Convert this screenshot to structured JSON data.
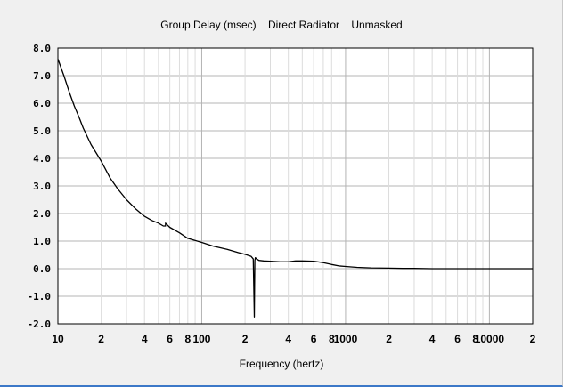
{
  "window": {
    "title": "Group Delay (msec)    Direct Radiator    Unmasked"
  },
  "chart_data": {
    "type": "line",
    "title": "Group Delay (msec)    Direct Radiator    Unmasked",
    "xlabel": "Frequency (hertz)",
    "ylabel": "",
    "xscale": "log",
    "xlim": [
      10,
      20000
    ],
    "ylim": [
      -2,
      8
    ],
    "grid": true,
    "legend": "none",
    "colors": {
      "background": "#ffffff",
      "line": "#000000",
      "grid_major": "#b4b4b4",
      "grid_minor": "#dcdcdc",
      "frame": "#000000"
    },
    "y_ticks": [
      "8.0",
      "7.0",
      "6.0",
      "5.0",
      "4.0",
      "3.0",
      "2.0",
      "1.0",
      "0.0",
      "-1.0",
      "-2.0"
    ],
    "x_ticks": [
      {
        "value": 10,
        "label": "10"
      },
      {
        "value": 20,
        "label": "2"
      },
      {
        "value": 40,
        "label": "4"
      },
      {
        "value": 60,
        "label": "6"
      },
      {
        "value": 80,
        "label": "8"
      },
      {
        "value": 100,
        "label": "100"
      },
      {
        "value": 200,
        "label": "2"
      },
      {
        "value": 400,
        "label": "4"
      },
      {
        "value": 600,
        "label": "6"
      },
      {
        "value": 800,
        "label": "8"
      },
      {
        "value": 1000,
        "label": "1000"
      },
      {
        "value": 2000,
        "label": "2"
      },
      {
        "value": 4000,
        "label": "4"
      },
      {
        "value": 6000,
        "label": "6"
      },
      {
        "value": 8000,
        "label": "8"
      },
      {
        "value": 10000,
        "label": "10000"
      },
      {
        "value": 20000,
        "label": "2"
      }
    ],
    "series": [
      {
        "x": [
          10,
          11,
          12,
          13,
          14,
          15,
          17,
          20,
          23,
          26,
          30,
          35,
          40,
          45,
          50,
          54,
          56,
          56,
          60,
          70,
          80,
          100,
          120,
          150,
          180,
          200,
          220,
          228,
          230,
          232,
          233,
          234,
          236,
          238,
          240,
          245,
          250,
          270,
          300,
          350,
          400,
          450,
          500,
          600,
          700,
          800,
          900,
          1000,
          1200,
          1500,
          2000,
          2500,
          3000,
          4000,
          5000,
          7000,
          10000,
          15000,
          20000
        ],
        "values": [
          7.6,
          7.0,
          6.4,
          5.9,
          5.5,
          5.1,
          4.5,
          3.9,
          3.3,
          2.9,
          2.5,
          2.15,
          1.9,
          1.75,
          1.65,
          1.55,
          1.55,
          1.65,
          1.5,
          1.3,
          1.1,
          0.95,
          0.82,
          0.7,
          0.58,
          0.52,
          0.45,
          0.35,
          -0.7,
          -1.75,
          -0.6,
          0.3,
          0.4,
          0.38,
          0.35,
          0.33,
          0.3,
          0.28,
          0.27,
          0.25,
          0.25,
          0.28,
          0.28,
          0.27,
          0.22,
          0.15,
          0.1,
          0.08,
          0.05,
          0.03,
          0.02,
          0.01,
          0.01,
          0.0,
          0.0,
          0.0,
          0.0,
          0.0,
          0.0
        ]
      }
    ]
  }
}
